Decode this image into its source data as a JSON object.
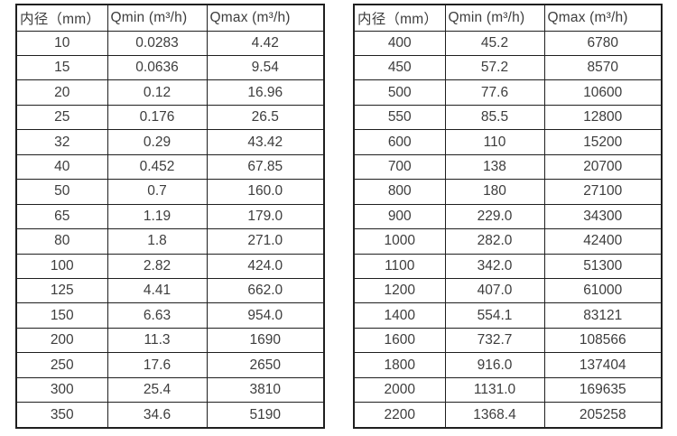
{
  "page": {
    "background_color": "#ffffff",
    "text_color": "#3d3d3d",
    "border_color": "#1f1f1f"
  },
  "tables": [
    {
      "name": "flow-table-small-diameters",
      "columns": [
        "内径（mm）",
        "Qmin (m³/h)",
        "Qmax (m³/h)"
      ],
      "rows": [
        [
          "10",
          "0.0283",
          "4.42"
        ],
        [
          "15",
          "0.0636",
          "9.54"
        ],
        [
          "20",
          "0.12",
          "16.96"
        ],
        [
          "25",
          "0.176",
          "26.5"
        ],
        [
          "32",
          "0.29",
          "43.42"
        ],
        [
          "40",
          "0.452",
          "67.85"
        ],
        [
          "50",
          "0.7",
          "160.0"
        ],
        [
          "65",
          "1.19",
          "179.0"
        ],
        [
          "80",
          "1.8",
          "271.0"
        ],
        [
          "100",
          "2.82",
          "424.0"
        ],
        [
          "125",
          "4.41",
          "662.0"
        ],
        [
          "150",
          "6.63",
          "954.0"
        ],
        [
          "200",
          "11.3",
          "1690"
        ],
        [
          "250",
          "17.6",
          "2650"
        ],
        [
          "300",
          "25.4",
          "3810"
        ],
        [
          "350",
          "34.6",
          "5190"
        ]
      ]
    },
    {
      "name": "flow-table-large-diameters",
      "columns": [
        "内径（mm）",
        "Qmin (m³/h)",
        "Qmax (m³/h)"
      ],
      "rows": [
        [
          "400",
          "45.2",
          "6780"
        ],
        [
          "450",
          "57.2",
          "8570"
        ],
        [
          "500",
          "77.6",
          "10600"
        ],
        [
          "550",
          "85.5",
          "12800"
        ],
        [
          "600",
          "110",
          "15200"
        ],
        [
          "700",
          "138",
          "20700"
        ],
        [
          "800",
          "180",
          "27100"
        ],
        [
          "900",
          "229.0",
          "34300"
        ],
        [
          "1000",
          "282.0",
          "42400"
        ],
        [
          "1100",
          "342.0",
          "51300"
        ],
        [
          "1200",
          "407.0",
          "61000"
        ],
        [
          "1400",
          "554.1",
          "83121"
        ],
        [
          "1600",
          "732.7",
          "108566"
        ],
        [
          "1800",
          "916.0",
          "137404"
        ],
        [
          "2000",
          "1131.0",
          "169635"
        ],
        [
          "2200",
          "1368.4",
          "205258"
        ]
      ]
    }
  ]
}
